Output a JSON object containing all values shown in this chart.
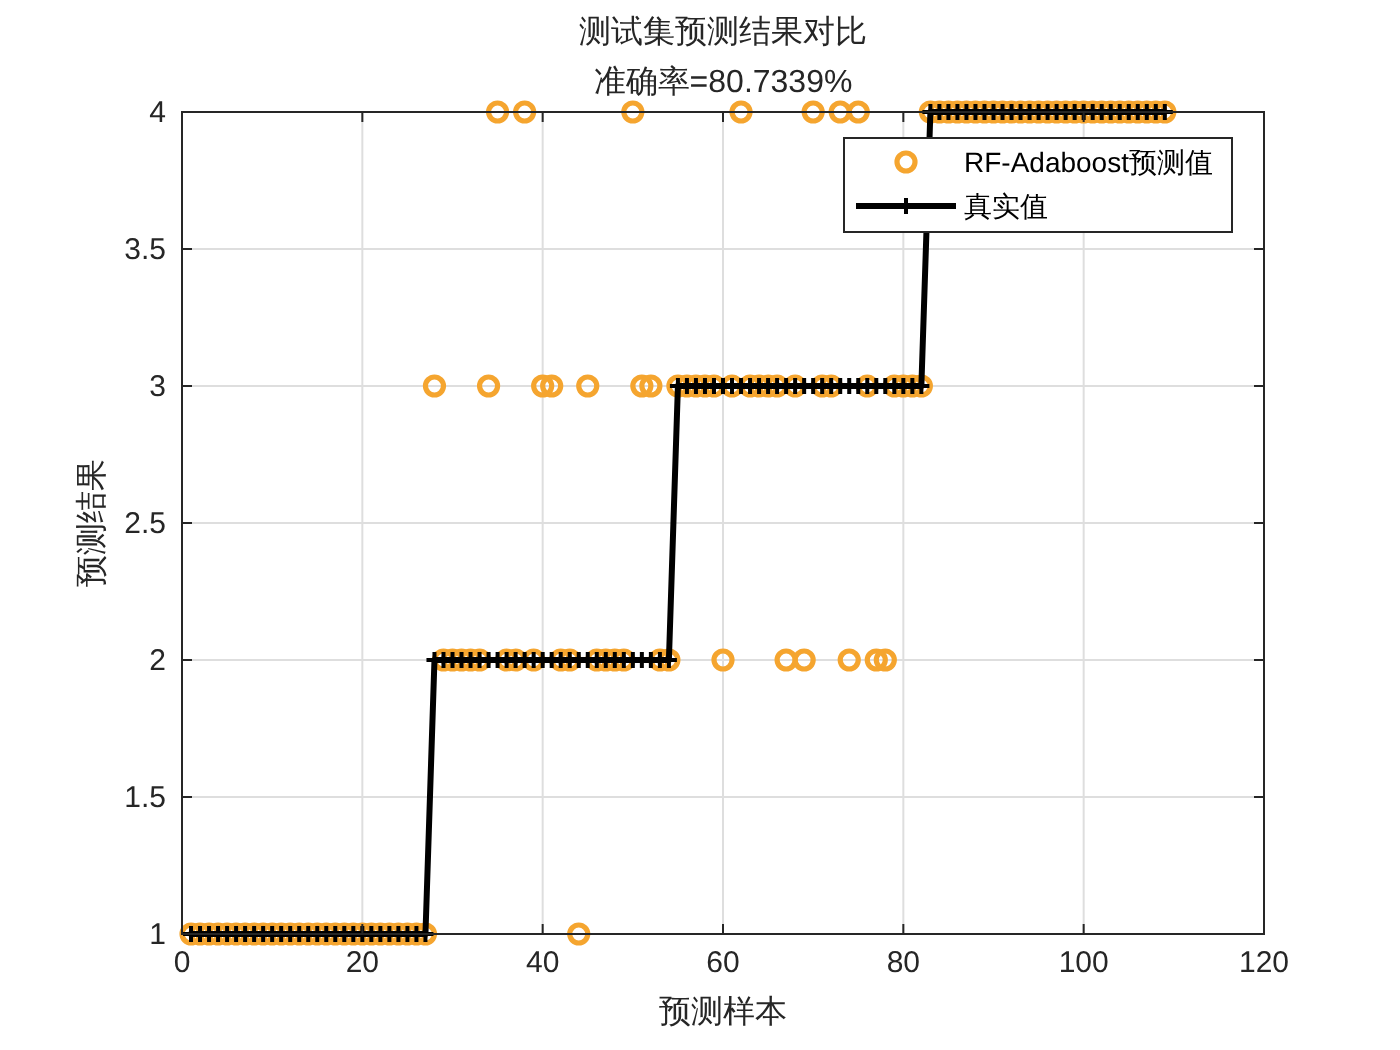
{
  "chart_data": {
    "type": "scatter",
    "title": "测试集预测结果对比",
    "subtitle": "准确率=80.7339%",
    "xlabel": "预测样本",
    "ylabel": "预测结果",
    "x": [
      1,
      2,
      3,
      4,
      5,
      6,
      7,
      8,
      9,
      10,
      11,
      12,
      13,
      14,
      15,
      16,
      17,
      18,
      19,
      20,
      21,
      22,
      23,
      24,
      25,
      26,
      27,
      28,
      29,
      30,
      31,
      32,
      33,
      34,
      35,
      36,
      37,
      38,
      39,
      40,
      41,
      42,
      43,
      44,
      45,
      46,
      47,
      48,
      49,
      50,
      51,
      52,
      53,
      54,
      55,
      56,
      57,
      58,
      59,
      60,
      61,
      62,
      63,
      64,
      65,
      66,
      67,
      68,
      69,
      70,
      71,
      72,
      73,
      74,
      75,
      76,
      77,
      78,
      79,
      80,
      81,
      82,
      83,
      84,
      85,
      86,
      87,
      88,
      89,
      90,
      91,
      92,
      93,
      94,
      95,
      96,
      97,
      98,
      99,
      100,
      101,
      102,
      103,
      104,
      105,
      106,
      107,
      108,
      109
    ],
    "series": [
      {
        "name": "RF-Adaboost预测值",
        "marker": "circle",
        "color": "#f5a52f",
        "values": [
          1,
          1,
          1,
          1,
          1,
          1,
          1,
          1,
          1,
          1,
          1,
          1,
          1,
          1,
          1,
          1,
          1,
          1,
          1,
          1,
          1,
          1,
          1,
          1,
          1,
          1,
          1,
          3,
          2,
          2,
          2,
          2,
          2,
          3,
          4,
          2,
          2,
          4,
          2,
          3,
          3,
          2,
          2,
          1,
          3,
          2,
          2,
          2,
          2,
          4,
          3,
          3,
          2,
          2,
          3,
          3,
          3,
          3,
          3,
          2,
          3,
          4,
          3,
          3,
          3,
          3,
          2,
          3,
          2,
          4,
          3,
          3,
          4,
          2,
          4,
          3,
          2,
          2,
          3,
          3,
          3,
          3,
          4,
          4,
          4,
          4,
          4,
          4,
          4,
          4,
          4,
          4,
          4,
          4,
          4,
          4,
          4,
          4,
          4,
          4,
          4,
          4,
          4,
          4,
          4,
          4,
          4,
          4,
          4
        ]
      },
      {
        "name": "真实值",
        "type": "line",
        "marker": "cross",
        "line_style": "solid",
        "color": "#000000",
        "values": [
          1,
          1,
          1,
          1,
          1,
          1,
          1,
          1,
          1,
          1,
          1,
          1,
          1,
          1,
          1,
          1,
          1,
          1,
          1,
          1,
          1,
          1,
          1,
          1,
          1,
          1,
          1,
          2,
          2,
          2,
          2,
          2,
          2,
          2,
          2,
          2,
          2,
          2,
          2,
          2,
          2,
          2,
          2,
          2,
          2,
          2,
          2,
          2,
          2,
          2,
          2,
          2,
          2,
          2,
          3,
          3,
          3,
          3,
          3,
          3,
          3,
          3,
          3,
          3,
          3,
          3,
          3,
          3,
          3,
          3,
          3,
          3,
          3,
          3,
          3,
          3,
          3,
          3,
          3,
          3,
          3,
          3,
          4,
          4,
          4,
          4,
          4,
          4,
          4,
          4,
          4,
          4,
          4,
          4,
          4,
          4,
          4,
          4,
          4,
          4,
          4,
          4,
          4,
          4,
          4,
          4,
          4,
          4,
          4
        ]
      }
    ],
    "xlim": [
      0,
      120
    ],
    "xticks": [
      0,
      20,
      40,
      60,
      80,
      100,
      120
    ],
    "ylim": [
      1,
      4
    ],
    "yticks": [
      1,
      1.5,
      2,
      2.5,
      3,
      3.5,
      4
    ],
    "grid": true,
    "legend": "top right"
  }
}
